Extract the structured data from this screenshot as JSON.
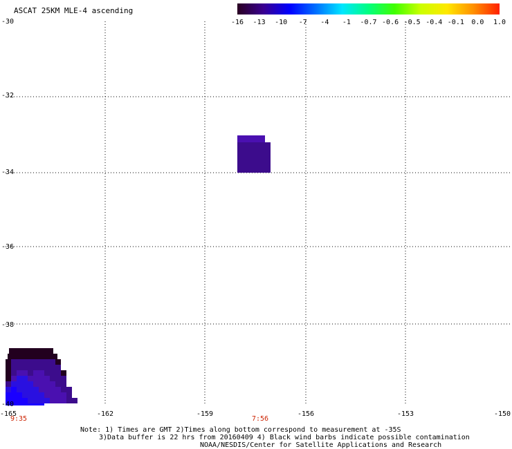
{
  "title": "ASCAT 25KM MLE-4 ascending",
  "colorbar": {
    "labels": [
      "-16",
      "-13",
      "-10",
      "-7",
      "-4",
      "-1",
      "-0.7",
      "-0.6",
      "-0.5",
      "-0.4",
      "-0.1",
      "0.0",
      "1.0"
    ],
    "colors": [
      "#2a0022",
      "#3a0090",
      "#0000ff",
      "#0070ff",
      "#00e6ff",
      "#00ff80",
      "#40ff00",
      "#ccff00",
      "#ffe800",
      "#ff9000",
      "#ff2000"
    ]
  },
  "map": {
    "y_labels": [
      "-30",
      "-32",
      "-34",
      "-36",
      "-38",
      "-40"
    ],
    "x_labels": [
      "-165",
      "-162",
      "-159",
      "-156",
      "-153",
      "-150"
    ],
    "times": [
      "9:35",
      "7:56"
    ],
    "cell_colors": {
      "dark": "#22001f",
      "purple": "#3c0c8c",
      "violet": "#4a10b0",
      "blue": "#2a10e0",
      "bright_blue": "#1a00ff"
    }
  },
  "notes": {
    "line1": "Note: 1) Times are GMT 2)Times along bottom correspond to measurement at -35S",
    "line2": "3)Data buffer is 22 hrs from 20160409 4) Black wind barbs indicate possible contamination",
    "line3": "NOAA/NESDIS/Center for Satellite Applications and Research"
  }
}
